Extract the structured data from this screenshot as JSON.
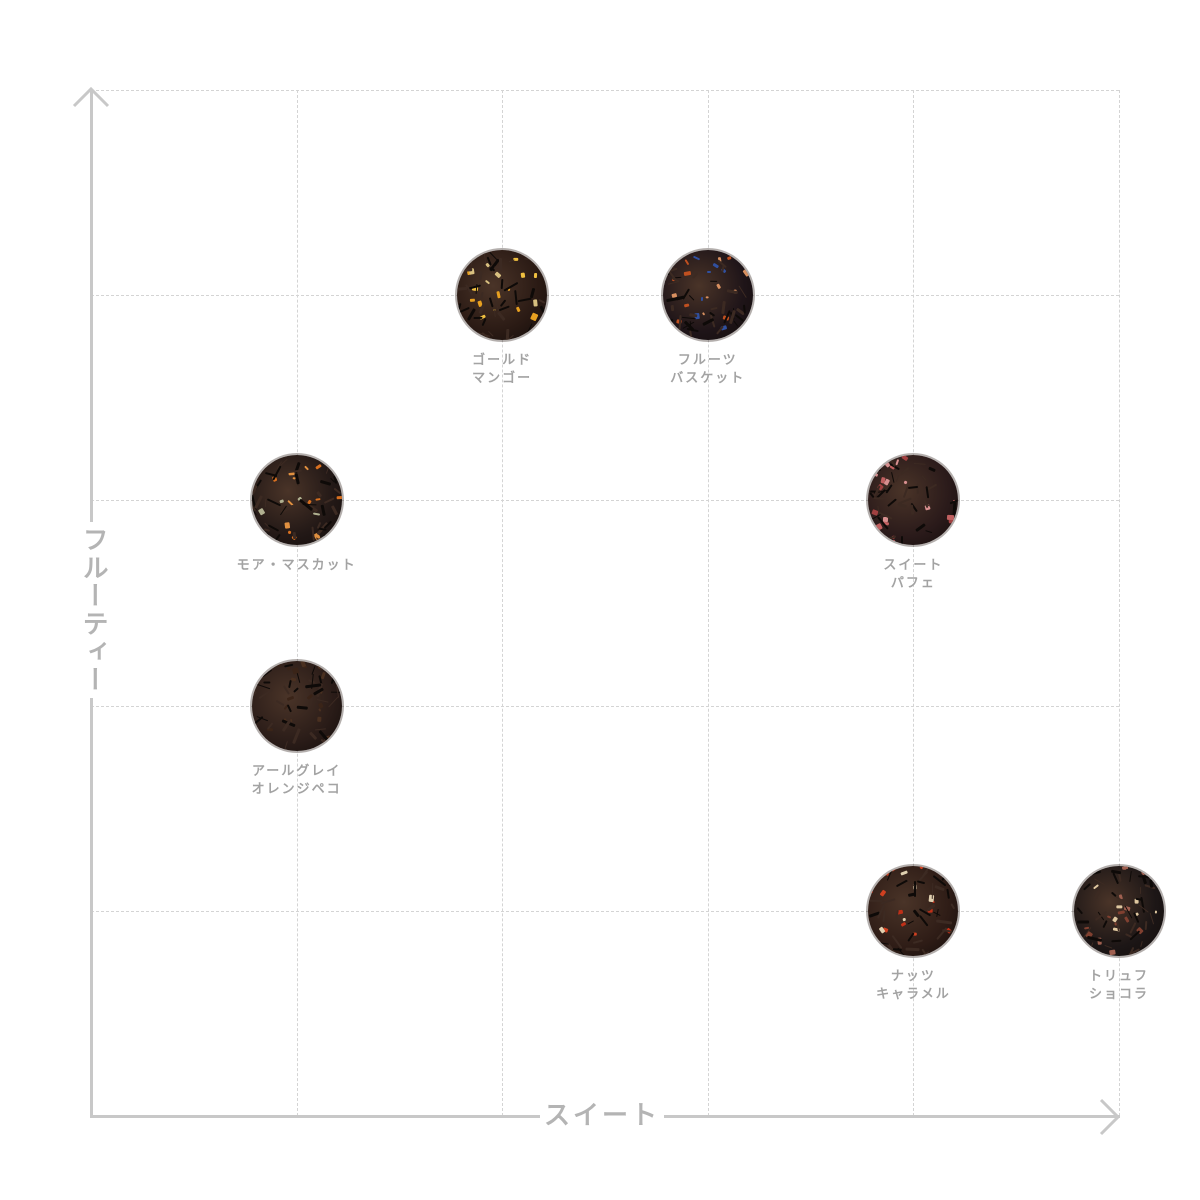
{
  "chart_data": {
    "type": "scatter",
    "xlabel": "スイート",
    "ylabel": "フルーティー",
    "xlim": [
      0,
      5
    ],
    "ylim": [
      0,
      5
    ],
    "grid": true,
    "points": [
      {
        "label_lines": [
          "ゴールド",
          "マンゴー"
        ],
        "x": 2,
        "y": 4,
        "base": "#2a1a14",
        "accents": [
          "#e8a020",
          "#d8c080",
          "#f0c040"
        ]
      },
      {
        "label_lines": [
          "フルーツ",
          "バスケット"
        ],
        "x": 3,
        "y": 4,
        "base": "#1e1418",
        "accents": [
          "#3050a0",
          "#c05020",
          "#d89060"
        ]
      },
      {
        "label_lines": [
          "モア・マスカット"
        ],
        "x": 1,
        "y": 3,
        "base": "#221816",
        "accents": [
          "#d87020",
          "#b0b090",
          "#e09040"
        ]
      },
      {
        "label_lines": [
          "スイート",
          "パフェ"
        ],
        "x": 4,
        "y": 3,
        "base": "#2a1a1a",
        "accents": [
          "#c06060",
          "#d89090",
          "#a04040"
        ]
      },
      {
        "label_lines": [
          "アールグレイ",
          "オレンジペコ"
        ],
        "x": 1,
        "y": 2,
        "base": "#2a1c18",
        "accents": [
          "#3a2418",
          "#4a3020"
        ]
      },
      {
        "label_lines": [
          "ナッツ",
          "キャラメル"
        ],
        "x": 4,
        "y": 1,
        "base": "#2e1c16",
        "accents": [
          "#d04020",
          "#e0d0b0",
          "#c03018"
        ]
      },
      {
        "label_lines": [
          "トリュフ",
          "ショコラ"
        ],
        "x": 5,
        "y": 1,
        "base": "#1c1616",
        "accents": [
          "#a06050",
          "#e0c8a0",
          "#804030"
        ]
      }
    ]
  }
}
